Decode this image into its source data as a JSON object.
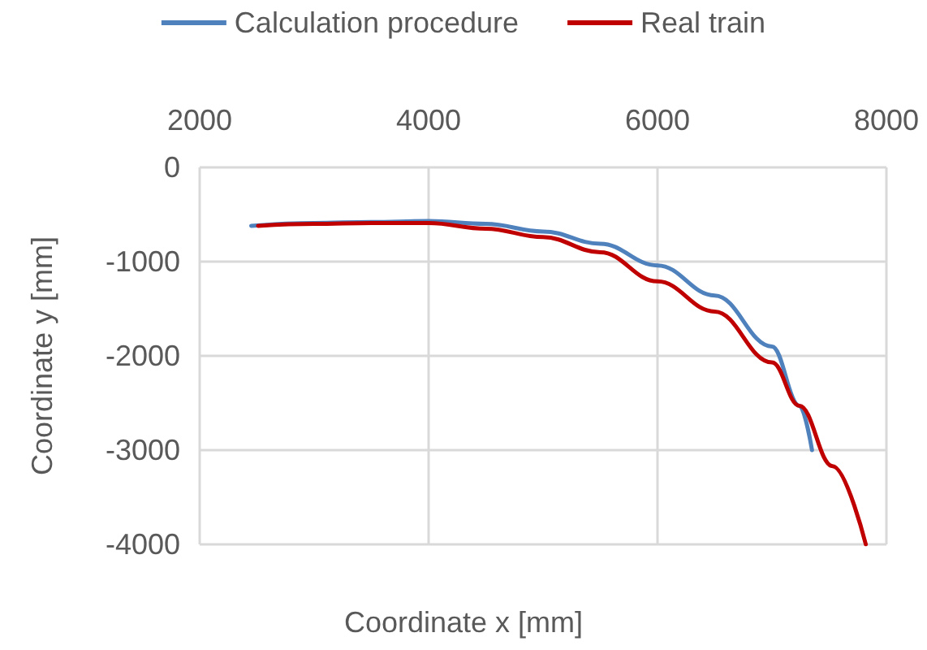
{
  "chart_data": {
    "type": "line",
    "xlabel": "Coordinate x [mm]",
    "ylabel": "Coordinate y [mm]",
    "xlim": [
      2000,
      8000
    ],
    "xticks": [
      2000,
      4000,
      6000,
      8000
    ],
    "ylim": [
      -4000,
      0
    ],
    "yticks": [
      -4000,
      -3000,
      -2000,
      -1000,
      0
    ],
    "grid": true,
    "legend": "top",
    "marker": "none",
    "line_style": "solid",
    "series": [
      {
        "name": "Calculation procedure",
        "color": "#4f81bd",
        "x": [
          2450,
          3000,
          3500,
          4000,
          4500,
          5000,
          5500,
          6000,
          6500,
          7000,
          7240,
          7350
        ],
        "values": [
          -620,
          -590,
          -580,
          -570,
          -600,
          -680,
          -810,
          -1040,
          -1360,
          -1900,
          -2530,
          -3000
        ]
      },
      {
        "name": "Real train",
        "color": "#c00000",
        "x": [
          2510,
          3000,
          3500,
          4000,
          4500,
          5000,
          5500,
          6000,
          6500,
          7000,
          7240,
          7530,
          7820
        ],
        "values": [
          -620,
          -600,
          -590,
          -590,
          -650,
          -740,
          -900,
          -1210,
          -1530,
          -2070,
          -2530,
          -3170,
          -4000
        ]
      }
    ]
  }
}
